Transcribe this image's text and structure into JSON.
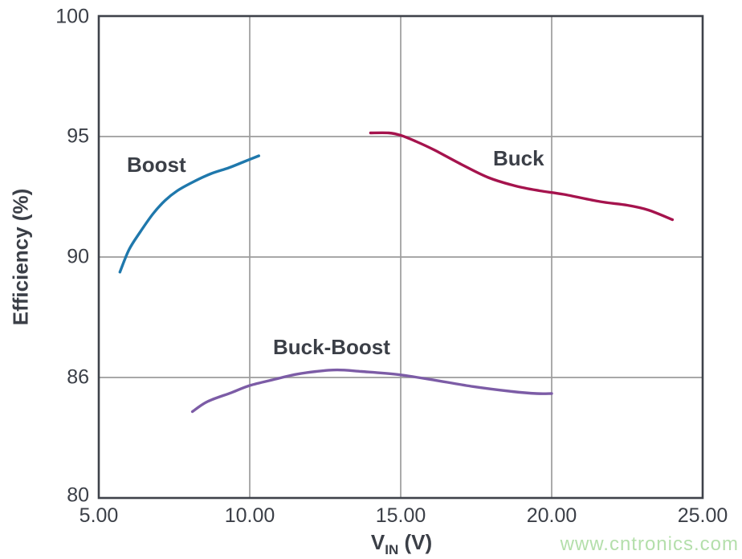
{
  "chart_data": {
    "type": "line",
    "title": "",
    "ylabel": "Efficiency (%)",
    "xlabel": {
      "base": "V",
      "sub": "IN",
      "unit": "(V)"
    },
    "xlim": [
      5,
      25
    ],
    "ylim": [
      80,
      100
    ],
    "grid": true,
    "legend_position": "inline-labels",
    "x_ticks": [
      {
        "value": 5,
        "label": "5.00"
      },
      {
        "value": 10,
        "label": "10.00"
      },
      {
        "value": 15,
        "label": "15.00"
      },
      {
        "value": 20,
        "label": "20.00"
      },
      {
        "value": 25,
        "label": "25.00"
      }
    ],
    "y_ticks": [
      {
        "value": 100,
        "label": "100"
      },
      {
        "value": 95,
        "label": "95"
      },
      {
        "value": 90,
        "label": "90"
      },
      {
        "value": 86,
        "label": "86"
      },
      {
        "value": 80,
        "label": "80"
      }
    ],
    "style": {
      "grid_color": "#9c9c9c",
      "axis_color": "#3e424a",
      "text_color": "#3b3f47"
    },
    "series": [
      {
        "name": "Boost",
        "color": "#1f78ac",
        "points": [
          [
            5.7,
            89.5
          ],
          [
            6.0,
            90.3
          ],
          [
            6.35,
            91.0
          ],
          [
            6.8,
            91.8
          ],
          [
            7.2,
            92.35
          ],
          [
            7.6,
            92.75
          ],
          [
            8.1,
            93.1
          ],
          [
            8.7,
            93.45
          ],
          [
            9.3,
            93.7
          ],
          [
            9.8,
            93.95
          ],
          [
            10.3,
            94.2
          ]
        ]
      },
      {
        "name": "Buck",
        "color": "#a5134d",
        "points": [
          [
            14.0,
            95.15
          ],
          [
            14.6,
            95.15
          ],
          [
            15.0,
            95.05
          ],
          [
            15.5,
            94.8
          ],
          [
            16.1,
            94.45
          ],
          [
            17.0,
            93.85
          ],
          [
            17.9,
            93.3
          ],
          [
            18.8,
            92.95
          ],
          [
            19.6,
            92.75
          ],
          [
            20.4,
            92.6
          ],
          [
            21.6,
            92.3
          ],
          [
            22.5,
            92.15
          ],
          [
            23.2,
            91.95
          ],
          [
            24.0,
            91.55
          ]
        ]
      },
      {
        "name": "Buck-Boost",
        "color": "#7c5ca6",
        "points": [
          [
            8.1,
            84.3
          ],
          [
            8.6,
            84.8
          ],
          [
            9.4,
            85.25
          ],
          [
            10.0,
            85.6
          ],
          [
            10.8,
            85.9
          ],
          [
            11.5,
            86.1
          ],
          [
            12.2,
            86.2
          ],
          [
            12.9,
            86.25
          ],
          [
            13.7,
            86.2
          ],
          [
            14.9,
            86.1
          ],
          [
            16.2,
            85.85
          ],
          [
            17.4,
            85.55
          ],
          [
            18.7,
            85.3
          ],
          [
            19.5,
            85.2
          ],
          [
            20.0,
            85.2
          ]
        ]
      }
    ]
  },
  "watermark": {
    "text": "www.cntronics.com",
    "color": "#b4dfab"
  }
}
